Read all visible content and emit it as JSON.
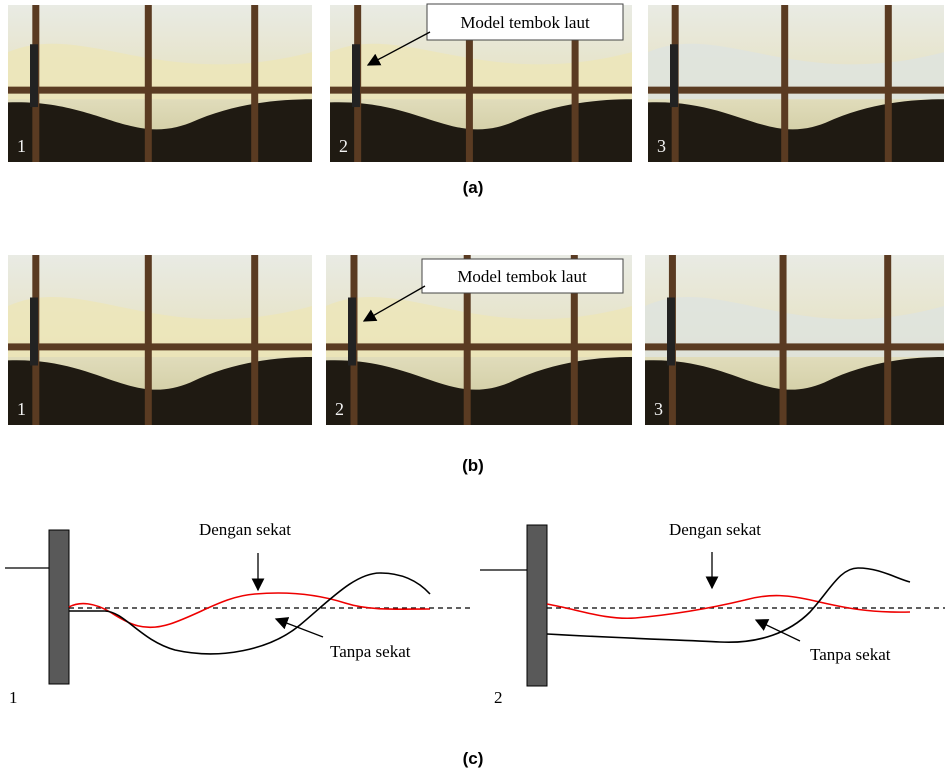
{
  "panel_a": {
    "label": "(a)",
    "photo_numbers": [
      "1",
      "2",
      "3"
    ],
    "callout": "Model tembok laut"
  },
  "panel_b": {
    "label": "(b)",
    "photo_numbers": [
      "1",
      "2",
      "3"
    ],
    "callout": "Model tembok laut"
  },
  "panel_c": {
    "label": "(c)",
    "plots": [
      {
        "number": "1",
        "with_partition": "Dengan sekat",
        "without_partition": "Tanpa sekat"
      },
      {
        "number": "2",
        "with_partition": "Dengan sekat",
        "without_partition": "Tanpa sekat"
      }
    ]
  }
}
